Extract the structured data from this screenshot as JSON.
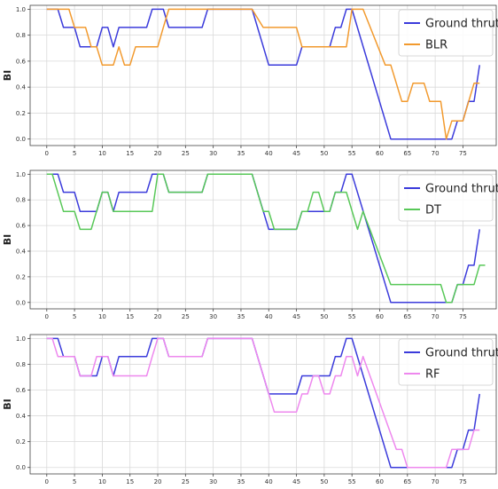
{
  "chart_data": [
    {
      "type": "line",
      "ylabel": "BI",
      "xlabel": "",
      "title": "",
      "xlim": [
        -3,
        81
      ],
      "ylim": [
        -0.05,
        1.03
      ],
      "xticks": [
        0,
        5,
        10,
        15,
        20,
        25,
        30,
        35,
        40,
        45,
        50,
        55,
        60,
        65,
        70,
        75
      ],
      "yticks": [
        0.0,
        0.2,
        0.4,
        0.6,
        0.8,
        1.0
      ],
      "grid": true,
      "legend_position": "top-right",
      "series": [
        {
          "name": "Ground thruth",
          "color": "#3b3bdb",
          "points": [
            [
              0,
              1.0
            ],
            [
              2,
              1.0
            ],
            [
              3,
              0.86
            ],
            [
              5,
              0.86
            ],
            [
              6,
              0.71
            ],
            [
              9,
              0.71
            ],
            [
              10,
              0.86
            ],
            [
              11,
              0.86
            ],
            [
              12,
              0.71
            ],
            [
              13,
              0.86
            ],
            [
              18,
              0.86
            ],
            [
              19,
              1.0
            ],
            [
              21,
              1.0
            ],
            [
              22,
              0.86
            ],
            [
              28,
              0.86
            ],
            [
              29,
              1.0
            ],
            [
              37,
              1.0
            ],
            [
              40,
              0.57
            ],
            [
              45,
              0.57
            ],
            [
              46,
              0.71
            ],
            [
              51,
              0.71
            ],
            [
              52,
              0.86
            ],
            [
              53,
              0.86
            ],
            [
              54,
              1.0
            ],
            [
              55,
              1.0
            ],
            [
              62,
              0.0
            ],
            [
              73,
              0.0
            ],
            [
              74,
              0.14
            ],
            [
              75,
              0.14
            ],
            [
              76,
              0.29
            ],
            [
              77,
              0.29
            ],
            [
              78,
              0.57
            ]
          ]
        },
        {
          "name": "BLR",
          "color": "#f29a2e",
          "points": [
            [
              0,
              1.0
            ],
            [
              4,
              1.0
            ],
            [
              5,
              0.86
            ],
            [
              7,
              0.86
            ],
            [
              8,
              0.71
            ],
            [
              9,
              0.71
            ],
            [
              10,
              0.57
            ],
            [
              12,
              0.57
            ],
            [
              13,
              0.71
            ],
            [
              14,
              0.57
            ],
            [
              15,
              0.57
            ],
            [
              16,
              0.71
            ],
            [
              20,
              0.71
            ],
            [
              21,
              0.86
            ],
            [
              22,
              1.0
            ],
            [
              37,
              1.0
            ],
            [
              39,
              0.86
            ],
            [
              45,
              0.86
            ],
            [
              46,
              0.71
            ],
            [
              54,
              0.71
            ],
            [
              55,
              1.0
            ],
            [
              57,
              1.0
            ],
            [
              61,
              0.57
            ],
            [
              62,
              0.57
            ],
            [
              64,
              0.29
            ],
            [
              65,
              0.29
            ],
            [
              66,
              0.43
            ],
            [
              68,
              0.43
            ],
            [
              69,
              0.29
            ],
            [
              71,
              0.29
            ],
            [
              72,
              0.0
            ],
            [
              73,
              0.14
            ],
            [
              75,
              0.14
            ],
            [
              77,
              0.43
            ],
            [
              78,
              0.43
            ]
          ]
        }
      ]
    },
    {
      "type": "line",
      "ylabel": "BI",
      "xlabel": "",
      "title": "",
      "xlim": [
        -3,
        81
      ],
      "ylim": [
        -0.05,
        1.03
      ],
      "xticks": [
        0,
        5,
        10,
        15,
        20,
        25,
        30,
        35,
        40,
        45,
        50,
        55,
        60,
        65,
        70,
        75
      ],
      "yticks": [
        0.0,
        0.2,
        0.4,
        0.6,
        0.8,
        1.0
      ],
      "grid": true,
      "legend_position": "top-right",
      "series": [
        {
          "name": "Ground thruth",
          "color": "#3b3bdb",
          "points": [
            [
              0,
              1.0
            ],
            [
              2,
              1.0
            ],
            [
              3,
              0.86
            ],
            [
              5,
              0.86
            ],
            [
              6,
              0.71
            ],
            [
              9,
              0.71
            ],
            [
              10,
              0.86
            ],
            [
              11,
              0.86
            ],
            [
              12,
              0.71
            ],
            [
              13,
              0.86
            ],
            [
              18,
              0.86
            ],
            [
              19,
              1.0
            ],
            [
              21,
              1.0
            ],
            [
              22,
              0.86
            ],
            [
              28,
              0.86
            ],
            [
              29,
              1.0
            ],
            [
              37,
              1.0
            ],
            [
              40,
              0.57
            ],
            [
              45,
              0.57
            ],
            [
              46,
              0.71
            ],
            [
              51,
              0.71
            ],
            [
              52,
              0.86
            ],
            [
              53,
              0.86
            ],
            [
              54,
              1.0
            ],
            [
              55,
              1.0
            ],
            [
              62,
              0.0
            ],
            [
              73,
              0.0
            ],
            [
              74,
              0.14
            ],
            [
              75,
              0.14
            ],
            [
              76,
              0.29
            ],
            [
              77,
              0.29
            ],
            [
              78,
              0.57
            ]
          ]
        },
        {
          "name": "DT",
          "color": "#58c858",
          "points": [
            [
              0,
              1.0
            ],
            [
              1,
              1.0
            ],
            [
              3,
              0.71
            ],
            [
              5,
              0.71
            ],
            [
              6,
              0.57
            ],
            [
              8,
              0.57
            ],
            [
              10,
              0.86
            ],
            [
              11,
              0.86
            ],
            [
              12,
              0.71
            ],
            [
              19,
              0.71
            ],
            [
              20,
              1.0
            ],
            [
              21,
              1.0
            ],
            [
              22,
              0.86
            ],
            [
              28,
              0.86
            ],
            [
              29,
              1.0
            ],
            [
              37,
              1.0
            ],
            [
              39,
              0.71
            ],
            [
              40,
              0.71
            ],
            [
              41,
              0.57
            ],
            [
              45,
              0.57
            ],
            [
              46,
              0.71
            ],
            [
              47,
              0.71
            ],
            [
              48,
              0.86
            ],
            [
              49,
              0.86
            ],
            [
              50,
              0.71
            ],
            [
              51,
              0.71
            ],
            [
              52,
              0.86
            ],
            [
              54,
              0.86
            ],
            [
              56,
              0.57
            ],
            [
              57,
              0.71
            ],
            [
              62,
              0.14
            ],
            [
              71,
              0.14
            ],
            [
              72,
              0.0
            ],
            [
              73,
              0.0
            ],
            [
              74,
              0.14
            ],
            [
              77,
              0.14
            ],
            [
              78,
              0.29
            ],
            [
              79,
              0.29
            ]
          ]
        }
      ]
    },
    {
      "type": "line",
      "ylabel": "BI",
      "xlabel": "",
      "title": "",
      "xlim": [
        -3,
        81
      ],
      "ylim": [
        -0.05,
        1.03
      ],
      "xticks": [
        0,
        5,
        10,
        15,
        20,
        25,
        30,
        35,
        40,
        45,
        50,
        55,
        60,
        65,
        70,
        75
      ],
      "yticks": [
        0.0,
        0.2,
        0.4,
        0.6,
        0.8,
        1.0
      ],
      "grid": true,
      "legend_position": "top-right",
      "series": [
        {
          "name": "Ground thruth",
          "color": "#3b3bdb",
          "points": [
            [
              0,
              1.0
            ],
            [
              2,
              1.0
            ],
            [
              3,
              0.86
            ],
            [
              5,
              0.86
            ],
            [
              6,
              0.71
            ],
            [
              9,
              0.71
            ],
            [
              10,
              0.86
            ],
            [
              11,
              0.86
            ],
            [
              12,
              0.71
            ],
            [
              13,
              0.86
            ],
            [
              18,
              0.86
            ],
            [
              19,
              1.0
            ],
            [
              21,
              1.0
            ],
            [
              22,
              0.86
            ],
            [
              28,
              0.86
            ],
            [
              29,
              1.0
            ],
            [
              37,
              1.0
            ],
            [
              40,
              0.57
            ],
            [
              45,
              0.57
            ],
            [
              46,
              0.71
            ],
            [
              51,
              0.71
            ],
            [
              52,
              0.86
            ],
            [
              53,
              0.86
            ],
            [
              54,
              1.0
            ],
            [
              55,
              1.0
            ],
            [
              62,
              0.0
            ],
            [
              73,
              0.0
            ],
            [
              74,
              0.14
            ],
            [
              75,
              0.14
            ],
            [
              76,
              0.29
            ],
            [
              77,
              0.29
            ],
            [
              78,
              0.57
            ]
          ]
        },
        {
          "name": "RF",
          "color": "#ee88ee",
          "points": [
            [
              0,
              1.0
            ],
            [
              1,
              1.0
            ],
            [
              2,
              0.86
            ],
            [
              5,
              0.86
            ],
            [
              6,
              0.71
            ],
            [
              8,
              0.71
            ],
            [
              9,
              0.86
            ],
            [
              11,
              0.86
            ],
            [
              12,
              0.71
            ],
            [
              18,
              0.71
            ],
            [
              19,
              0.86
            ],
            [
              20,
              1.0
            ],
            [
              21,
              1.0
            ],
            [
              22,
              0.86
            ],
            [
              28,
              0.86
            ],
            [
              29,
              1.0
            ],
            [
              37,
              1.0
            ],
            [
              41,
              0.43
            ],
            [
              45,
              0.43
            ],
            [
              46,
              0.57
            ],
            [
              47,
              0.57
            ],
            [
              48,
              0.71
            ],
            [
              49,
              0.71
            ],
            [
              50,
              0.57
            ],
            [
              51,
              0.57
            ],
            [
              52,
              0.71
            ],
            [
              53,
              0.71
            ],
            [
              54,
              0.86
            ],
            [
              55,
              0.86
            ],
            [
              56,
              0.71
            ],
            [
              57,
              0.86
            ],
            [
              63,
              0.14
            ],
            [
              64,
              0.14
            ],
            [
              65,
              0.0
            ],
            [
              72,
              0.0
            ],
            [
              73,
              0.14
            ],
            [
              76,
              0.14
            ],
            [
              77,
              0.29
            ],
            [
              78,
              0.29
            ]
          ]
        }
      ]
    }
  ]
}
